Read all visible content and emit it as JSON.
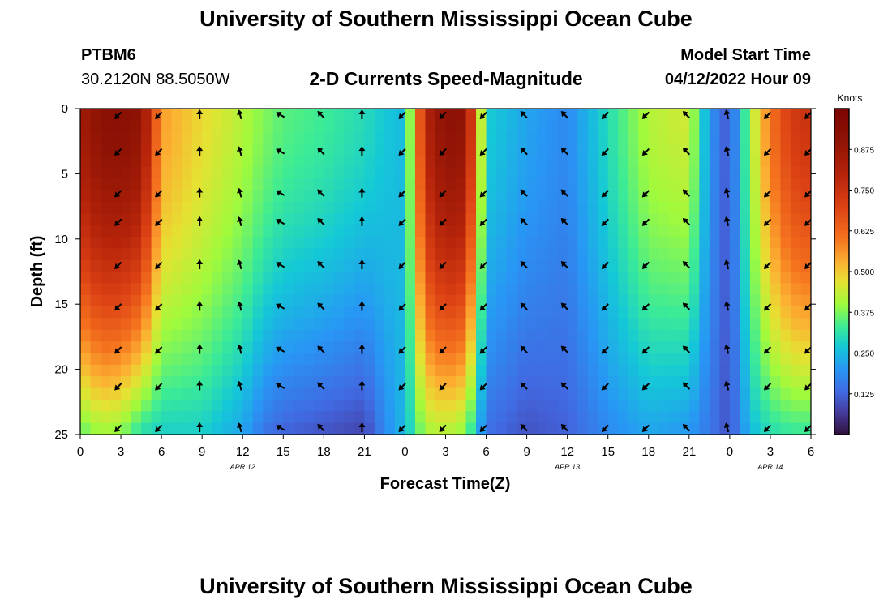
{
  "titles": {
    "top": "University of Southern Mississippi Ocean Cube",
    "bottom": "University of Southern Mississippi Ocean Cube"
  },
  "station": {
    "name": "PTBM6",
    "coords": "30.2120N  88.5050W"
  },
  "model": {
    "label": "Model Start Time",
    "datetime": "04/12/2022 Hour 09"
  },
  "chart_data": {
    "type": "heatmap",
    "title": "2-D Currents Speed-Magnitude",
    "xlabel": "Forecast Time(Z)",
    "ylabel": "Depth (ft)",
    "x_ticks": [
      "0",
      "3",
      "6",
      "9",
      "12",
      "15",
      "18",
      "21",
      "0",
      "3",
      "6",
      "9",
      "12",
      "15",
      "18",
      "21",
      "0",
      "3",
      "6"
    ],
    "y_ticks": [
      "0",
      "5",
      "10",
      "15",
      "20",
      "25"
    ],
    "ylim": [
      0,
      25
    ],
    "x_hours_range": [
      0,
      54
    ],
    "date_labels": [
      {
        "text": "APR 12",
        "hour": 12
      },
      {
        "text": "APR 13",
        "hour": 36
      },
      {
        "text": "APR 14",
        "hour": 51
      }
    ],
    "colorbar": {
      "label": "Knots",
      "ticks": [
        "0.875",
        "0.750",
        "0.625",
        "0.500",
        "0.375",
        "0.250",
        "0.125"
      ],
      "tick_values": [
        0.875,
        0.75,
        0.625,
        0.5,
        0.375,
        0.25,
        0.125
      ],
      "range": [
        0,
        1.0
      ]
    },
    "arrow_depths_ft": [
      0.5,
      3.3,
      6.5,
      8.7,
      12,
      15.2,
      18.5,
      21.3,
      24.5
    ],
    "arrow_hours": [
      3,
      6,
      9,
      12,
      15,
      18,
      21,
      24,
      27,
      30,
      33,
      36,
      39,
      42,
      45,
      48,
      51,
      54
    ],
    "arrow_direction_deg_by_hour": [
      225,
      225,
      0,
      345,
      300,
      315,
      0,
      225,
      225,
      225,
      315,
      315,
      225,
      225,
      315,
      345,
      225,
      225
    ],
    "speed_profile": {
      "hours": [
        0,
        1.5,
        3,
        4.5,
        6,
        9,
        12,
        13.5,
        15,
        18,
        21,
        22.5,
        24,
        25.5,
        27,
        28.5,
        30,
        33,
        36,
        39,
        42,
        45,
        46.5,
        48,
        49.5,
        51,
        52.5,
        54
      ],
      "surface": [
        0.85,
        0.92,
        0.93,
        0.9,
        0.55,
        0.48,
        0.42,
        0.38,
        0.35,
        0.33,
        0.3,
        0.27,
        0.25,
        0.8,
        0.92,
        0.9,
        0.28,
        0.22,
        0.18,
        0.3,
        0.42,
        0.45,
        0.2,
        0.1,
        0.4,
        0.6,
        0.72,
        0.75
      ],
      "bottom": [
        0.35,
        0.4,
        0.38,
        0.3,
        0.28,
        0.28,
        0.22,
        0.15,
        0.12,
        0.1,
        0.08,
        0.18,
        0.25,
        0.4,
        0.42,
        0.38,
        0.14,
        0.1,
        0.12,
        0.18,
        0.22,
        0.2,
        0.15,
        0.1,
        0.25,
        0.3,
        0.32,
        0.32
      ]
    }
  }
}
